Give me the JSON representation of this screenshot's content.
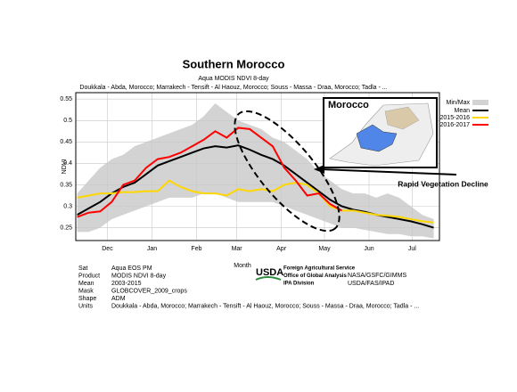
{
  "chart_data": {
    "type": "line",
    "title": "Southern Morocco",
    "subtitle": "Aqua MODIS NDVI 8-day",
    "subtitle2": "Doukkala - Abda, Morocco; Marrakech - Tensift - Al Haouz, Morocco; Souss - Massa - Draa, Morocco; Tadla - ...",
    "y_label": "NDVI",
    "x_label": "Month",
    "annotation": "Rapid Vegetation Decline",
    "inset_title": "Morocco",
    "legend": "right",
    "grid": true,
    "xlim": [
      -22,
      231
    ],
    "xticks": [
      {
        "value": 0,
        "label": "Dec"
      },
      {
        "value": 31,
        "label": "Jan"
      },
      {
        "value": 62,
        "label": "Feb"
      },
      {
        "value": 90,
        "label": "Mar"
      },
      {
        "value": 121,
        "label": "Apr"
      },
      {
        "value": 151,
        "label": "May"
      },
      {
        "value": 182,
        "label": "Jun"
      },
      {
        "value": 212,
        "label": "Jul"
      }
    ],
    "ylim": [
      0.22,
      0.565
    ],
    "yticks": [
      0.25,
      0.3,
      0.35,
      0.4,
      0.45,
      0.5,
      0.55
    ],
    "x": [
      -21,
      -13,
      -5,
      3,
      11,
      19,
      27,
      35,
      43,
      51,
      59,
      67,
      75,
      83,
      91,
      99,
      107,
      115,
      123,
      131,
      139,
      147,
      155,
      163,
      171,
      179,
      187,
      195,
      203,
      211,
      219,
      227
    ],
    "band": {
      "name": "Min/Max",
      "color": "#d3d3d3",
      "max": [
        0.33,
        0.36,
        0.39,
        0.41,
        0.42,
        0.44,
        0.45,
        0.46,
        0.47,
        0.48,
        0.49,
        0.51,
        0.54,
        0.52,
        0.5,
        0.49,
        0.48,
        0.46,
        0.45,
        0.43,
        0.41,
        0.38,
        0.36,
        0.34,
        0.33,
        0.33,
        0.32,
        0.33,
        0.32,
        0.3,
        0.28,
        0.27
      ],
      "min": [
        0.24,
        0.24,
        0.25,
        0.27,
        0.28,
        0.29,
        0.3,
        0.31,
        0.32,
        0.32,
        0.32,
        0.33,
        0.33,
        0.32,
        0.31,
        0.31,
        0.31,
        0.31,
        0.3,
        0.29,
        0.28,
        0.27,
        0.26,
        0.25,
        0.25,
        0.245,
        0.24,
        0.235,
        0.235,
        0.23,
        0.23,
        0.225
      ]
    },
    "series": [
      {
        "name": "Mean",
        "color": "#000000",
        "width": 2,
        "values": [
          0.28,
          0.295,
          0.31,
          0.33,
          0.345,
          0.355,
          0.375,
          0.395,
          0.405,
          0.415,
          0.425,
          0.435,
          0.44,
          0.437,
          0.442,
          0.432,
          0.42,
          0.41,
          0.395,
          0.375,
          0.355,
          0.335,
          0.315,
          0.3,
          0.292,
          0.287,
          0.28,
          0.275,
          0.27,
          0.265,
          0.258,
          0.25
        ]
      },
      {
        "name": "2015-2016",
        "color": "#ffd700",
        "width": 2,
        "values": [
          0.32,
          0.325,
          0.33,
          0.33,
          0.333,
          0.333,
          0.335,
          0.335,
          0.36,
          0.345,
          0.335,
          0.33,
          0.33,
          0.325,
          0.34,
          0.335,
          0.34,
          0.335,
          0.35,
          0.355,
          0.35,
          0.33,
          0.3,
          0.29,
          0.29,
          0.285,
          0.28,
          0.278,
          0.275,
          0.27,
          0.265,
          0.262
        ]
      },
      {
        "name": "2016-2017",
        "color": "#ff0000",
        "width": 2,
        "values": [
          0.275,
          0.285,
          0.288,
          0.31,
          0.35,
          0.36,
          0.39,
          0.41,
          0.415,
          0.425,
          0.44,
          0.455,
          0.475,
          0.46,
          0.483,
          0.48,
          0.46,
          0.44,
          0.39,
          0.36,
          0.325,
          0.33,
          0.305,
          0.29,
          null,
          null,
          null,
          null,
          null,
          null,
          null,
          null
        ]
      }
    ]
  },
  "metadata": [
    [
      "Sat",
      "Aqua EOS PM"
    ],
    [
      "Product",
      "MODIS NDVI 8-day"
    ],
    [
      "Mean",
      "2003-2015"
    ],
    [
      "Mask",
      "GLOBCOVER_2009_crops"
    ],
    [
      "Shape",
      "ADM"
    ],
    [
      "Units",
      "Doukkala - Abda, Morocco; Marrakech - Tensift - Al Haouz, Morocco; Souss - Massa - Draa, Morocco; Tadla - ..."
    ]
  ],
  "logo": {
    "mark": "USDA",
    "lines": [
      "Foreign Agricultural Service",
      "Office of Global Analysis",
      "IPA Division"
    ]
  },
  "credits": [
    "NASA/GSFC/GIMMS",
    "USDA/FAS/IPAD"
  ]
}
